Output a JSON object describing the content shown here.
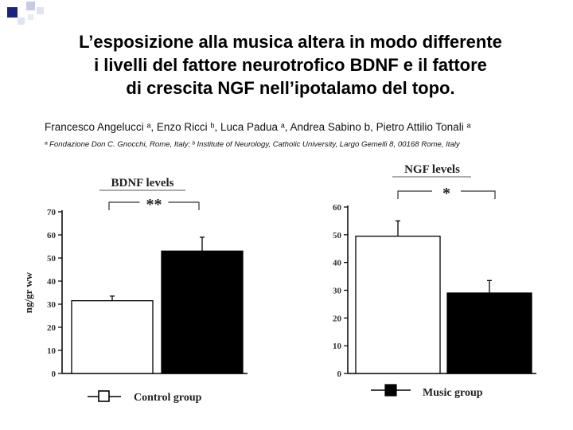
{
  "slide": {
    "title_lines": [
      "L’esposizione alla musica altera in modo differente",
      "i livelli del fattore neurotrofico BDNF e il fattore",
      "di crescita NGF nell’ipotalamo del topo."
    ],
    "authors": "Francesco Angelucci ᵃ, Enzo Ricci ᵇ, Luca Padua ᵃ, Andrea Sabino b, Pietro Attilio Tonali ᵃ",
    "affiliation": "ᵃ Fondazione Don C. Gnocchi, Rome, Italy; ᵇ Institute of Neurology, Catholic University, Largo Gemelli 8, 00168 Rome, Italy"
  },
  "colors": {
    "control": "#ffffff",
    "music": "#000000",
    "accent_square": "#1a237e"
  },
  "legend": {
    "control": "Control group",
    "music": "Music group"
  },
  "chart_data": [
    {
      "type": "bar",
      "title": "BDNF levels",
      "ylabel": "ng/gr ww",
      "categories": [
        "Control group",
        "Music group"
      ],
      "values": [
        31.5,
        53
      ],
      "errors": [
        2,
        6
      ],
      "ylim": [
        0,
        70
      ],
      "yticks": [
        0,
        10,
        20,
        30,
        40,
        50,
        60,
        70
      ],
      "significance": "**",
      "grid": false
    },
    {
      "type": "bar",
      "title": "NGF levels",
      "ylabel": "",
      "categories": [
        "Control group",
        "Music group"
      ],
      "values": [
        49.5,
        29
      ],
      "errors": [
        5.5,
        4.5
      ],
      "ylim": [
        0,
        60
      ],
      "yticks": [
        0,
        10,
        20,
        30,
        40,
        50,
        60
      ],
      "significance": "*",
      "grid": false
    }
  ]
}
